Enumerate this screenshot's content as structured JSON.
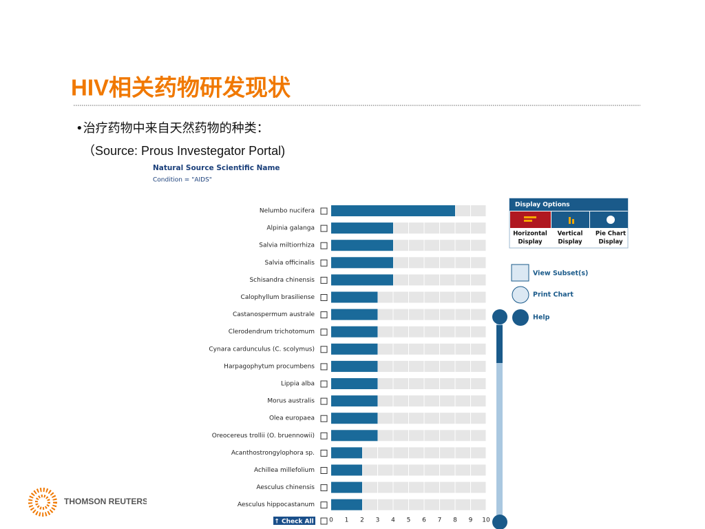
{
  "slide": {
    "title": "HIV相关药物研发现状",
    "bullet": "•治疗药物中来自天然药物的种类：",
    "source": "（Source: Prous Investegator Portal)",
    "logo": "THOMSON REUTERS"
  },
  "panel": {
    "display_options": "Display Options",
    "buttons": [
      [
        "Horizontal",
        "Display"
      ],
      [
        "Vertical",
        "Display"
      ],
      [
        "Pie Chart",
        "Display"
      ]
    ],
    "view_subset": "View Subset(s)",
    "print_chart": "Print Chart",
    "help": "Help",
    "check_all": "↑ Check All"
  },
  "chart_data": {
    "type": "bar",
    "orientation": "horizontal",
    "title": "Natural Source Scientific Name",
    "subtitle": "Condition = \"AIDS\"",
    "categories": [
      "Nelumbo nucifera",
      "Alpinia galanga",
      "Salvia miltiorrhiza",
      "Salvia officinalis",
      "Schisandra chinensis",
      "Calophyllum brasiliense",
      "Castanospermum australe",
      "Clerodendrum trichotomum",
      "Cynara cardunculus (C. scolymus)",
      "Harpagophytum procumbens",
      "Lippia alba",
      "Morus australis",
      "Olea europaea",
      "Oreocereus trollii (O. bruennowii)",
      "Acanthostrongylophora sp.",
      "Achillea millefolium",
      "Aesculus chinensis",
      "Aesculus hippocastanum"
    ],
    "values": [
      8,
      4,
      4,
      4,
      4,
      3,
      3,
      3,
      3,
      3,
      3,
      3,
      3,
      3,
      2,
      2,
      2,
      2
    ],
    "color": "#1a6a9a",
    "xlim": [
      0,
      10
    ],
    "xticks": [
      0,
      1,
      2,
      3,
      4,
      5,
      6,
      7,
      8,
      9,
      10
    ],
    "grid": true
  }
}
